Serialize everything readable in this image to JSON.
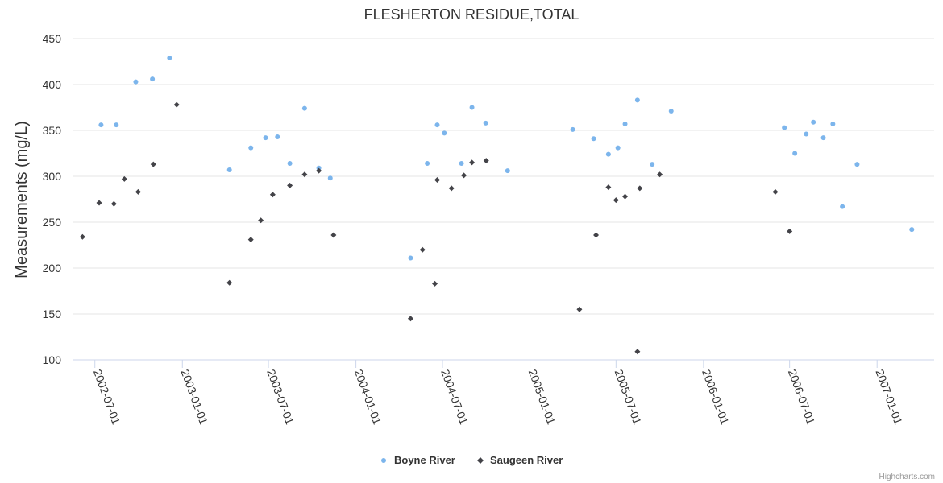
{
  "chart_data": {
    "type": "scatter",
    "title": "FLESHERTON RESIDUE,TOTAL",
    "ylabel": "Measurements (mg/L)",
    "xlabel": "",
    "ylim": [
      100,
      450
    ],
    "yticks": [
      100,
      150,
      200,
      250,
      300,
      350,
      400,
      450
    ],
    "xlim": [
      "2002-05-15",
      "2007-05-01"
    ],
    "xticks": [
      "2002-07-01",
      "2003-01-01",
      "2003-07-01",
      "2004-01-01",
      "2004-07-01",
      "2005-01-01",
      "2005-07-01",
      "2006-01-01",
      "2006-07-01",
      "2007-01-01"
    ],
    "grid": true,
    "legend_position": "bottom-center",
    "series": [
      {
        "name": "Boyne River",
        "color": "#7cb5ec",
        "marker": "circle",
        "points": [
          {
            "x": "2002-07-14",
            "y": 356
          },
          {
            "x": "2002-08-15",
            "y": 356
          },
          {
            "x": "2002-09-25",
            "y": 403
          },
          {
            "x": "2002-10-30",
            "y": 406
          },
          {
            "x": "2002-12-05",
            "y": 429
          },
          {
            "x": "2003-04-10",
            "y": 307
          },
          {
            "x": "2003-05-25",
            "y": 331
          },
          {
            "x": "2003-06-25",
            "y": 342
          },
          {
            "x": "2003-07-20",
            "y": 343
          },
          {
            "x": "2003-08-15",
            "y": 314
          },
          {
            "x": "2003-09-15",
            "y": 374
          },
          {
            "x": "2003-10-15",
            "y": 309
          },
          {
            "x": "2003-11-08",
            "y": 298
          },
          {
            "x": "2004-04-25",
            "y": 211
          },
          {
            "x": "2004-05-30",
            "y": 314
          },
          {
            "x": "2004-06-20",
            "y": 356
          },
          {
            "x": "2004-07-05",
            "y": 347
          },
          {
            "x": "2004-08-10",
            "y": 314
          },
          {
            "x": "2004-09-01",
            "y": 375
          },
          {
            "x": "2004-09-30",
            "y": 358
          },
          {
            "x": "2004-11-15",
            "y": 306
          },
          {
            "x": "2005-04-01",
            "y": 351
          },
          {
            "x": "2005-05-15",
            "y": 341
          },
          {
            "x": "2005-06-15",
            "y": 324
          },
          {
            "x": "2005-07-05",
            "y": 331
          },
          {
            "x": "2005-07-20",
            "y": 357
          },
          {
            "x": "2005-08-15",
            "y": 383
          },
          {
            "x": "2005-09-15",
            "y": 313
          },
          {
            "x": "2005-10-25",
            "y": 371
          },
          {
            "x": "2006-06-20",
            "y": 353
          },
          {
            "x": "2006-07-12",
            "y": 325
          },
          {
            "x": "2006-08-05",
            "y": 346
          },
          {
            "x": "2006-08-20",
            "y": 359
          },
          {
            "x": "2006-09-10",
            "y": 342
          },
          {
            "x": "2006-09-30",
            "y": 357
          },
          {
            "x": "2006-10-20",
            "y": 267
          },
          {
            "x": "2006-11-20",
            "y": 313
          },
          {
            "x": "2007-03-15",
            "y": 242
          }
        ]
      },
      {
        "name": "Saugeen River",
        "color": "#434348",
        "marker": "diamond",
        "points": [
          {
            "x": "2002-06-05",
            "y": 234
          },
          {
            "x": "2002-07-10",
            "y": 271
          },
          {
            "x": "2002-08-10",
            "y": 270
          },
          {
            "x": "2002-09-01",
            "y": 297
          },
          {
            "x": "2002-09-30",
            "y": 283
          },
          {
            "x": "2002-11-01",
            "y": 313
          },
          {
            "x": "2002-12-20",
            "y": 378
          },
          {
            "x": "2003-04-10",
            "y": 184
          },
          {
            "x": "2003-05-25",
            "y": 231
          },
          {
            "x": "2003-06-15",
            "y": 252
          },
          {
            "x": "2003-07-10",
            "y": 280
          },
          {
            "x": "2003-08-15",
            "y": 290
          },
          {
            "x": "2003-09-15",
            "y": 302
          },
          {
            "x": "2003-10-15",
            "y": 306
          },
          {
            "x": "2003-11-15",
            "y": 236
          },
          {
            "x": "2004-04-25",
            "y": 145
          },
          {
            "x": "2004-05-20",
            "y": 220
          },
          {
            "x": "2004-06-15",
            "y": 183
          },
          {
            "x": "2004-06-20",
            "y": 296
          },
          {
            "x": "2004-07-20",
            "y": 287
          },
          {
            "x": "2004-08-15",
            "y": 301
          },
          {
            "x": "2004-09-01",
            "y": 315
          },
          {
            "x": "2004-10-01",
            "y": 317
          },
          {
            "x": "2005-04-15",
            "y": 155
          },
          {
            "x": "2005-05-20",
            "y": 236
          },
          {
            "x": "2005-06-15",
            "y": 288
          },
          {
            "x": "2005-07-01",
            "y": 274
          },
          {
            "x": "2005-07-20",
            "y": 278
          },
          {
            "x": "2005-08-15",
            "y": 109
          },
          {
            "x": "2005-08-20",
            "y": 287
          },
          {
            "x": "2005-10-01",
            "y": 302
          },
          {
            "x": "2006-06-01",
            "y": 283
          },
          {
            "x": "2006-07-01",
            "y": 240
          }
        ]
      }
    ],
    "credits": "Highcharts.com"
  }
}
